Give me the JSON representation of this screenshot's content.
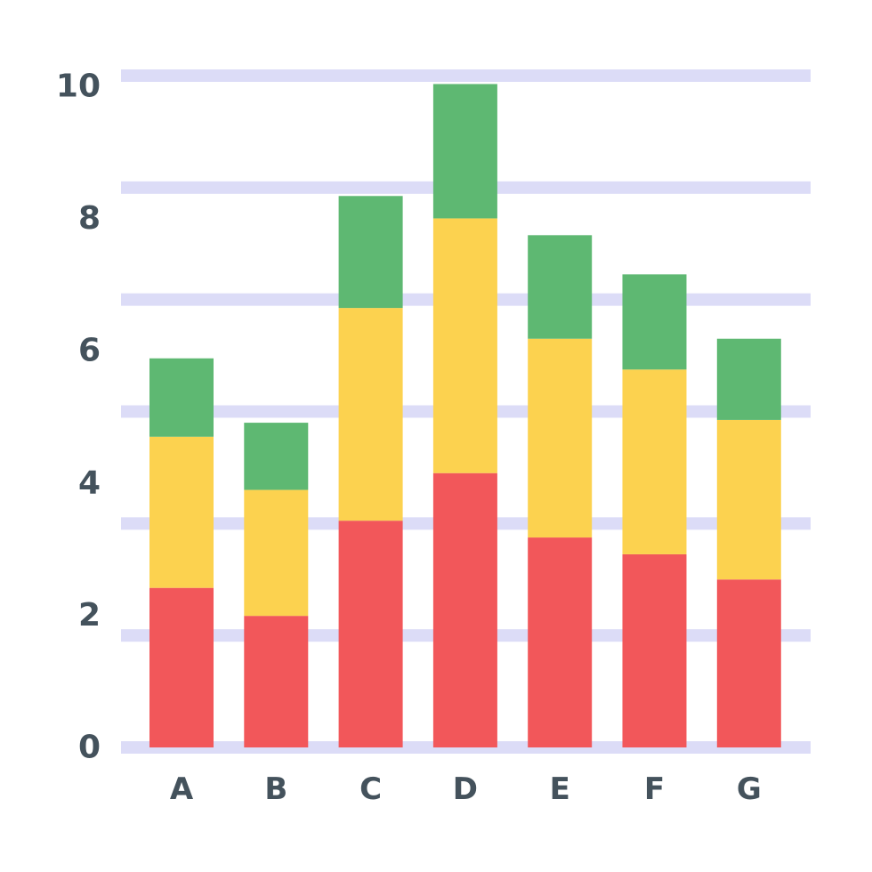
{
  "chart_data": {
    "type": "bar",
    "stacked": true,
    "categories": [
      "A",
      "B",
      "C",
      "D",
      "E",
      "F",
      "G"
    ],
    "series": [
      {
        "color": "#f2575a",
        "values": [
          2.85,
          2.35,
          4.05,
          4.9,
          3.75,
          3.45,
          3.0
        ]
      },
      {
        "color": "#fcd24f",
        "values": [
          2.7,
          2.25,
          3.8,
          4.55,
          3.55,
          3.3,
          2.85
        ]
      },
      {
        "color": "#5eb872",
        "values": [
          1.4,
          1.2,
          2.0,
          2.4,
          1.85,
          1.7,
          1.45
        ]
      }
    ],
    "y_ticks": [
      "0",
      "2",
      "4",
      "6",
      "8",
      "10"
    ],
    "ylim": [
      0,
      12
    ],
    "grid": true,
    "gridline_color": "#dcdcf7",
    "title": "",
    "xlabel": "",
    "ylabel": ""
  }
}
